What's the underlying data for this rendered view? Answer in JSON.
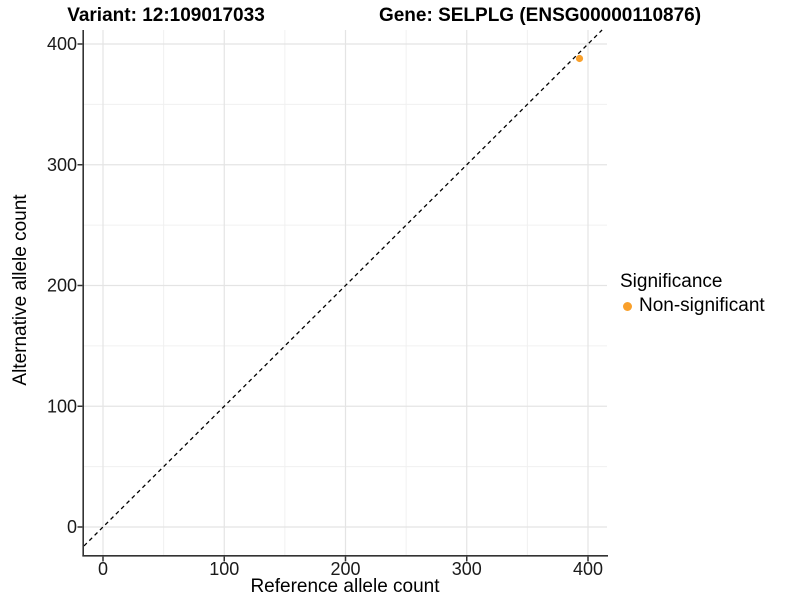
{
  "header": {
    "variant_title": "Variant: 12:109017033",
    "gene_title": "Gene: SELPLG (ENSG00000110876)"
  },
  "chart_data": {
    "type": "scatter",
    "xlabel": "Reference allele count",
    "ylabel": "Alternative allele count",
    "xlim": [
      -16,
      416
    ],
    "ylim": [
      -16,
      416
    ],
    "x_ticks": [
      0,
      100,
      200,
      300,
      400
    ],
    "y_ticks": [
      0,
      100,
      200,
      300,
      400
    ],
    "minor_gridlines": [
      50,
      150,
      250,
      350
    ],
    "grid": "major and minor gridlines on, white background",
    "points": [
      {
        "x": 393,
        "y": 388,
        "series": "Non-significant",
        "color": "#F9A02B"
      }
    ],
    "reference_line": {
      "type": "identity y=x",
      "style": "dashed",
      "color": "#000000"
    },
    "legend": {
      "title": "Significance",
      "position": "right",
      "items": [
        {
          "label": "Non-significant",
          "color": "#F9A02B"
        }
      ]
    }
  },
  "colors": {
    "background": "#FFFFFF",
    "point": "#F9A02B",
    "grid_major": "#E4E4E4",
    "grid_minor": "#F0F0F0",
    "axis_line": "#333333",
    "tick_label": "#1A1A1A",
    "reference_line": "#000000"
  }
}
